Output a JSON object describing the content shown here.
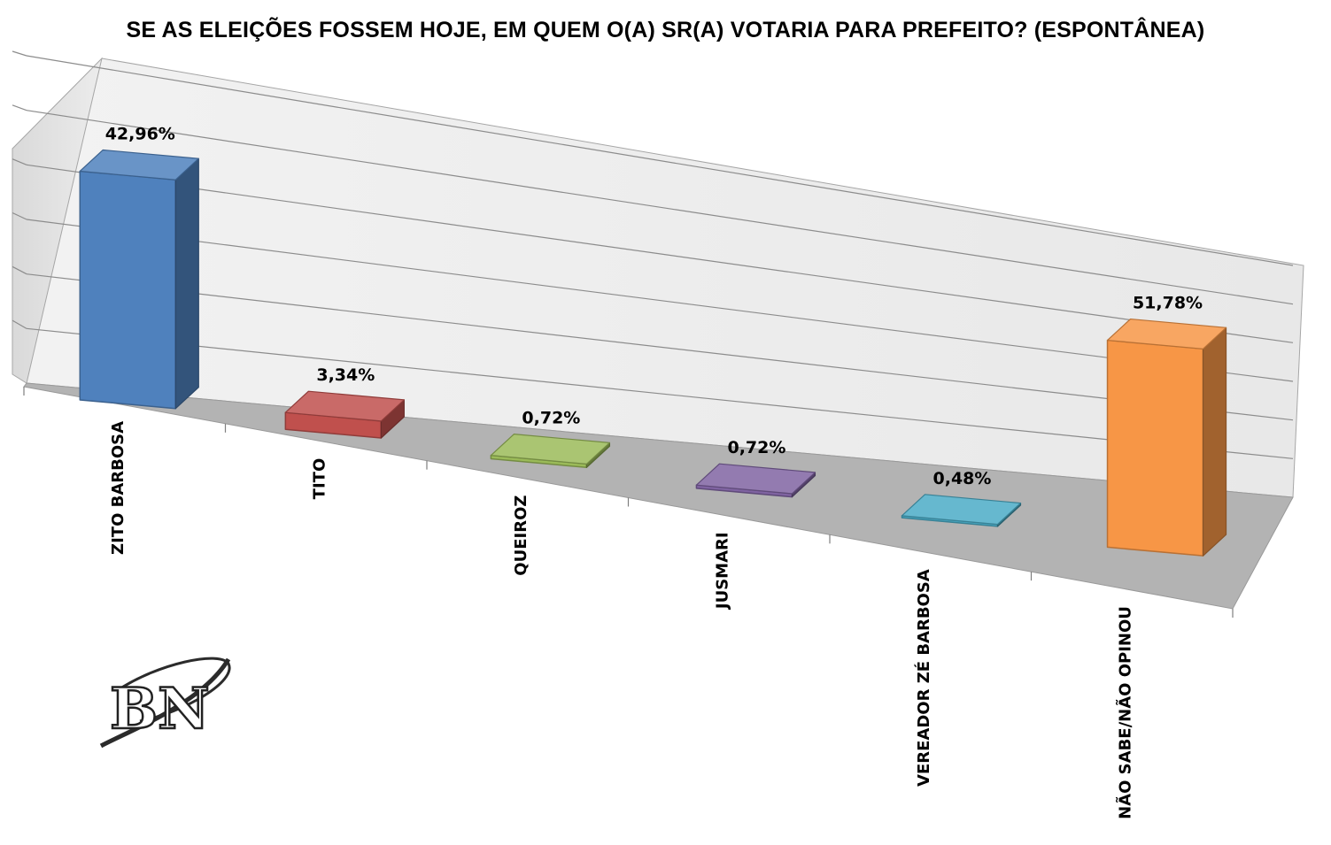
{
  "chart_data": {
    "type": "bar",
    "title": "SE AS ELEIÇÕES FOSSEM HOJE, EM QUEM O(A) SR(A) VOTARIA PARA PREFEITO? (ESPONTÂNEA)",
    "categories": [
      "ZITO BARBOSA",
      "TITO",
      "QUEIROZ",
      "JUSMARI",
      "VEREADOR ZÉ BARBOSA",
      "NÃO SABE/NÃO OPINOU"
    ],
    "values": [
      42.96,
      3.34,
      0.72,
      0.72,
      0.48,
      51.78
    ],
    "data_labels": [
      "42,96%",
      "3,34%",
      "0,72%",
      "0,72%",
      "0,48%",
      "51,78%"
    ],
    "colors": [
      "#4f81bd",
      "#c0504d",
      "#9bbb59",
      "#8064a2",
      "#4bacc6",
      "#f79646"
    ],
    "ylim": [
      0,
      60
    ],
    "grid": true,
    "legend": "none",
    "style": "3d-perspective"
  },
  "logo": {
    "text": "BN"
  }
}
